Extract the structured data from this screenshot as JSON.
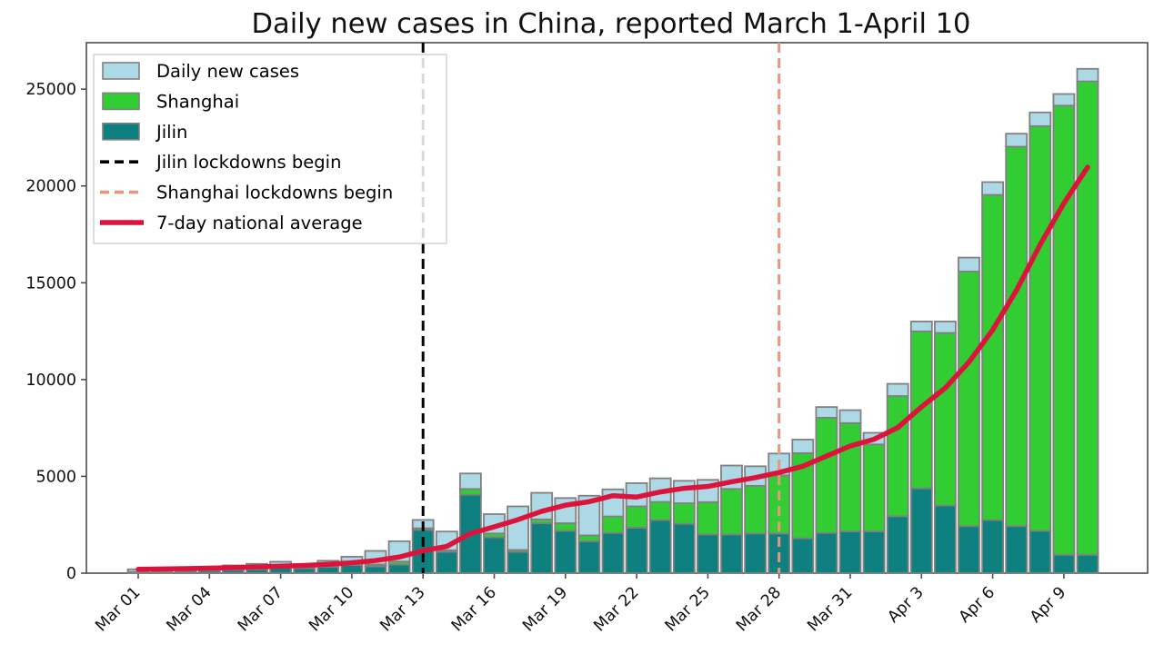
{
  "chart_data": {
    "type": "bar",
    "title": "Daily new cases in China, reported March 1-April 10",
    "grid": false,
    "legend_position": "upper left",
    "ylim": [
      0,
      27400
    ],
    "y_ticks": [
      0,
      5000,
      10000,
      15000,
      20000,
      25000
    ],
    "x": [
      "Mar 01",
      "Mar 02",
      "Mar 03",
      "Mar 04",
      "Mar 05",
      "Mar 06",
      "Mar 07",
      "Mar 08",
      "Mar 09",
      "Mar 10",
      "Mar 11",
      "Mar 12",
      "Mar 13",
      "Mar 14",
      "Mar 15",
      "Mar 16",
      "Mar 17",
      "Mar 18",
      "Mar 19",
      "Mar 20",
      "Mar 21",
      "Mar 22",
      "Mar 23",
      "Mar 24",
      "Mar 25",
      "Mar 26",
      "Mar 27",
      "Mar 28",
      "Mar 29",
      "Mar 30",
      "Mar 31",
      "Apr 1",
      "Apr 2",
      "Apr 3",
      "Apr 4",
      "Apr 5",
      "Apr 6",
      "Apr 7",
      "Apr 8",
      "Apr 9",
      "Apr 10"
    ],
    "x_tick_day_indices": [
      0,
      3,
      6,
      9,
      12,
      15,
      18,
      21,
      24,
      27,
      30,
      33,
      36,
      39
    ],
    "series": [
      {
        "name": "Daily new cases",
        "role": "total",
        "color": "#ADD8E6",
        "values": [
          200,
          230,
          280,
          330,
          400,
          480,
          590,
          470,
          640,
          850,
          1150,
          1650,
          2750,
          2150,
          5150,
          3050,
          3450,
          4150,
          3880,
          4000,
          4330,
          4650,
          4900,
          4770,
          4820,
          5560,
          5520,
          6180,
          6900,
          8580,
          8420,
          7250,
          9780,
          13000,
          13000,
          16300,
          20200,
          22700,
          23800,
          24750,
          26050
        ]
      },
      {
        "name": "Shanghai",
        "role": "stacked-on-jilin",
        "color": "#32CD32",
        "values": [
          5,
          8,
          10,
          15,
          20,
          30,
          40,
          40,
          50,
          60,
          100,
          150,
          80,
          80,
          300,
          200,
          100,
          200,
          390,
          300,
          850,
          1100,
          940,
          1060,
          1670,
          2350,
          2460,
          3000,
          4400,
          5950,
          5590,
          4490,
          6210,
          8110,
          8920,
          13150,
          16800,
          19600,
          20900,
          23200,
          24450
        ]
      },
      {
        "name": "Jilin",
        "role": "bottom",
        "color": "#0F8080",
        "values": [
          60,
          80,
          100,
          120,
          160,
          200,
          280,
          260,
          330,
          420,
          350,
          450,
          2240,
          1100,
          4050,
          1850,
          1100,
          2580,
          2190,
          1650,
          2080,
          2350,
          2740,
          2550,
          2000,
          2000,
          2050,
          2050,
          1800,
          2080,
          2160,
          2160,
          2940,
          4380,
          3490,
          2430,
          2740,
          2430,
          2190,
          950,
          950
        ]
      }
    ],
    "avg_line": {
      "name": "7-day national average",
      "color": "#DC143C",
      "window": 7
    },
    "events": [
      {
        "name": "Jilin lockdowns begin",
        "date": "Mar 13",
        "day_index": 12,
        "color": "#000000",
        "style": "dashed"
      },
      {
        "name": "Shanghai lockdowns begin",
        "date": "Mar 28",
        "day_index": 27,
        "color": "#E9967A",
        "style": "dashed"
      }
    ],
    "bar_edge_color": "#808080",
    "axis_color": "#4d4d4d",
    "legend": {
      "entries": [
        {
          "label": "Daily new cases",
          "type": "patch",
          "color": "#ADD8E6"
        },
        {
          "label": "Shanghai",
          "type": "patch",
          "color": "#32CD32"
        },
        {
          "label": "Jilin",
          "type": "patch",
          "color": "#0F8080"
        },
        {
          "label": "Jilin lockdowns begin",
          "type": "dashed",
          "color": "#000000"
        },
        {
          "label": "Shanghai lockdowns begin",
          "type": "dashed",
          "color": "#E9967A"
        },
        {
          "label": "7-day national average",
          "type": "line",
          "color": "#DC143C"
        }
      ]
    }
  }
}
